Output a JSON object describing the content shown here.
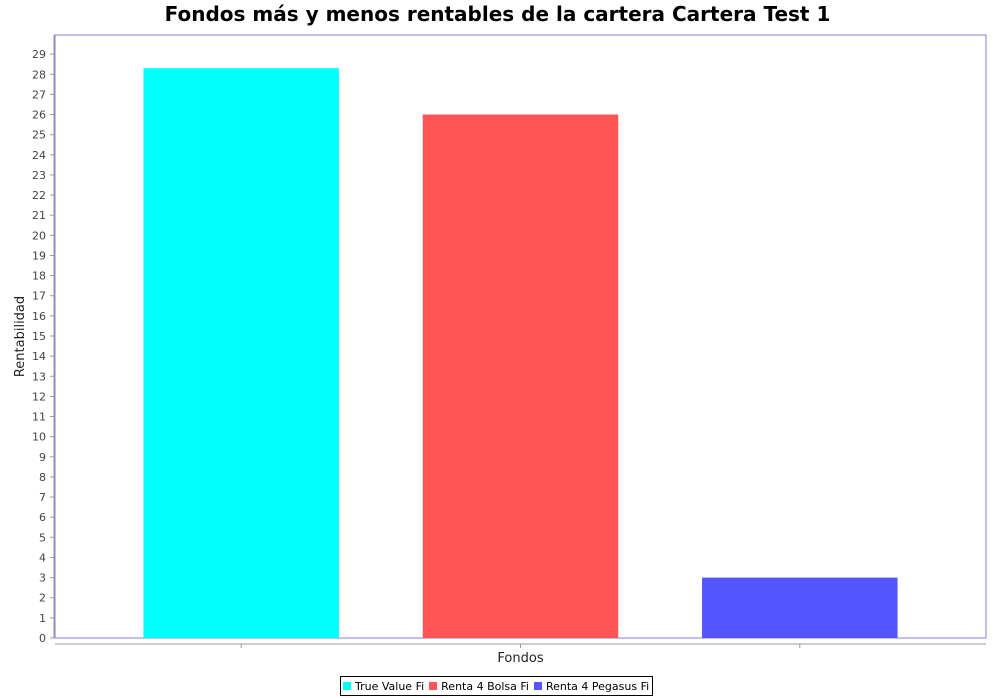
{
  "colors": {
    "plot_border": "#8080d0",
    "axis_text": "#444444",
    "tick": "#9a9a9a"
  },
  "chart_data": {
    "type": "bar",
    "title": "Fondos más y menos rentables de la cartera Cartera Test 1",
    "xlabel": "Fondos",
    "ylabel": "Rentabilidad",
    "ylim": [
      0,
      29.95
    ],
    "y_ticks": [
      0,
      1,
      2,
      3,
      4,
      5,
      6,
      7,
      8,
      9,
      10,
      11,
      12,
      13,
      14,
      15,
      16,
      17,
      18,
      19,
      20,
      21,
      22,
      23,
      24,
      25,
      26,
      27,
      28,
      29
    ],
    "grid": false,
    "legend_position": "bottom",
    "series": [
      {
        "name": "True Value Fi",
        "values": [
          28.3
        ],
        "color": "#00ffff"
      },
      {
        "name": "Renta 4 Bolsa Fi",
        "values": [
          26.0
        ],
        "color": "#ff5555"
      },
      {
        "name": "Renta 4 Pegasus Fi",
        "values": [
          3.0
        ],
        "color": "#5555ff"
      }
    ]
  }
}
